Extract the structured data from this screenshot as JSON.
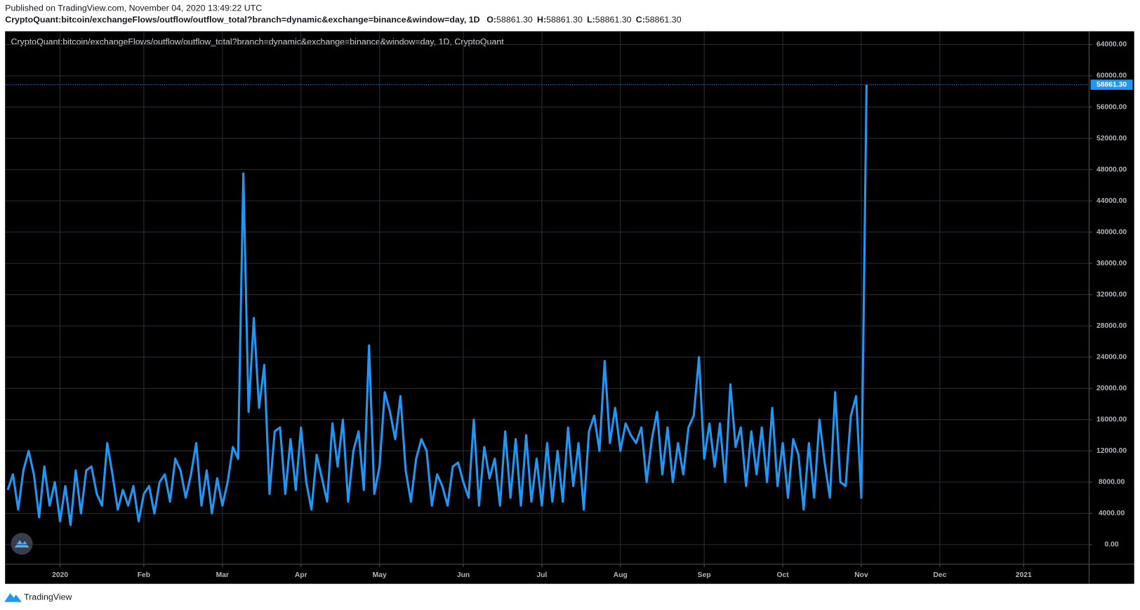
{
  "chart_data": {
    "type": "line",
    "title": "Published on TradingView.com, November 04, 2020 13:49:22 UTC",
    "subtitle": "CryptoQuant:bitcoin/exchangeFlows/outflow/outflow_total?branch=dynamic&exchange=binance&window=day, 1D",
    "ohlc": [
      {
        "name": "O:",
        "text": "58861.30"
      },
      {
        "name": "H:",
        "text": "58861.30"
      },
      {
        "name": "L:",
        "text": "58861.30"
      },
      {
        "name": "C:",
        "text": "58861.30"
      }
    ],
    "footer": "TradingView",
    "categories": [
      null,
      null,
      null,
      null,
      null,
      null,
      null,
      null,
      null,
      null,
      "2020",
      null,
      null,
      null,
      null,
      null,
      null,
      null,
      null,
      null,
      null,
      null,
      null,
      null,
      null,
      null,
      "Feb",
      null,
      null,
      null,
      null,
      null,
      null,
      null,
      null,
      null,
      null,
      null,
      null,
      null,
      null,
      "Mar",
      null,
      null,
      null,
      null,
      null,
      null,
      null,
      null,
      null,
      null,
      null,
      null,
      null,
      null,
      "Apr",
      null,
      null,
      null,
      null,
      null,
      null,
      null,
      null,
      null,
      null,
      null,
      null,
      null,
      null,
      "May",
      null,
      null,
      null,
      null,
      null,
      null,
      null,
      null,
      null,
      null,
      null,
      null,
      null,
      null,
      null,
      "Jun",
      null,
      null,
      null,
      null,
      null,
      null,
      null,
      null,
      null,
      null,
      null,
      null,
      null,
      null,
      "Jul",
      null,
      null,
      null,
      null,
      null,
      null,
      null,
      null,
      null,
      null,
      null,
      null,
      null,
      null,
      "Aug",
      null,
      null,
      null,
      null,
      null,
      null,
      null,
      null,
      null,
      null,
      null,
      null,
      null,
      null,
      null,
      "Sep",
      null,
      null,
      null,
      null,
      null,
      null,
      null,
      null,
      null,
      null,
      null,
      null,
      null,
      null,
      "Oct",
      null,
      null,
      null,
      null,
      null,
      null,
      null,
      null,
      null,
      null,
      null,
      null,
      null,
      null,
      "Nov",
      null,
      null,
      null,
      null,
      null,
      null,
      null,
      null,
      null,
      null,
      null,
      null,
      null,
      null,
      "Dec",
      null,
      null,
      null,
      null,
      null,
      null,
      null,
      null,
      null,
      null,
      null,
      null,
      null,
      null,
      null,
      "2021",
      null,
      null,
      null,
      null,
      null,
      null,
      null,
      null,
      null,
      null,
      null,
      null
    ],
    "series": [
      {
        "name": "CryptoQuant:bitcoin/exchangeFlows/outflow/outflow_total?branch=dynamic&exchange=binance&window=day, 1D, CryptoQuant",
        "color": "#2196f3",
        "values": [
          7000,
          9000,
          4500,
          9500,
          12000,
          9000,
          3500,
          10000,
          5000,
          8000,
          3000,
          7500,
          2500,
          9500,
          4000,
          9500,
          10000,
          6500,
          5000,
          13000,
          9000,
          4500,
          7000,
          5000,
          7500,
          3000,
          6500,
          7500,
          4000,
          8000,
          9000,
          5500,
          11000,
          9500,
          6000,
          9000,
          13000,
          5000,
          9500,
          4000,
          8500,
          5000,
          8000,
          12500,
          11000,
          47500,
          17000,
          29000,
          17500,
          23000,
          6500,
          14500,
          15000,
          6500,
          13500,
          7000,
          15000,
          8000,
          4500,
          11500,
          8500,
          5500,
          15500,
          10000,
          16000,
          5500,
          12000,
          14500,
          7000,
          25500,
          6500,
          10000,
          19500,
          17000,
          13500,
          19000,
          9500,
          5500,
          11000,
          13500,
          12000,
          5000,
          9000,
          7500,
          5000,
          10000,
          10500,
          8000,
          6000,
          16000,
          5000,
          12500,
          8500,
          11000,
          5000,
          14500,
          6000,
          13500,
          5000,
          14000,
          5500,
          11000,
          5000,
          13000,
          5500,
          12000,
          5500,
          15000,
          7500,
          13000,
          4500,
          14500,
          16500,
          12000,
          23500,
          13000,
          17500,
          12000,
          15500,
          14000,
          13000,
          15000,
          8000,
          13500,
          17000,
          9000,
          15000,
          8000,
          13000,
          9000,
          15000,
          16500,
          24000,
          11000,
          15500,
          10000,
          15500,
          8000,
          20500,
          12500,
          15000,
          7500,
          14500,
          9000,
          15000,
          8000,
          17500,
          7500,
          13000,
          6000,
          13500,
          11500,
          4500,
          13000,
          6000,
          16000,
          10500,
          6000,
          19500,
          8000,
          7500,
          16500,
          19000,
          6000,
          58861.3,
          null,
          null,
          null,
          null,
          null,
          null,
          null,
          null,
          null,
          null,
          null,
          null,
          null,
          null,
          null,
          null,
          null,
          null,
          null,
          null,
          null,
          null,
          null,
          null,
          null,
          null,
          null,
          null,
          null,
          null,
          null,
          null,
          null,
          null,
          null,
          null,
          null,
          null,
          null,
          null,
          null,
          null
        ]
      }
    ],
    "last_value": {
      "value": 58861.3,
      "label": "58861.30"
    },
    "ylim": [
      -2500,
      65700
    ],
    "yticks": [
      {
        "value": 0,
        "label": "0.00"
      },
      {
        "value": 4000,
        "label": "4000.00"
      },
      {
        "value": 8000,
        "label": "8000.00"
      },
      {
        "value": 12000,
        "label": "12000.00"
      },
      {
        "value": 16000,
        "label": "16000.00"
      },
      {
        "value": 20000,
        "label": "20000.00"
      },
      {
        "value": 24000,
        "label": "24000.00"
      },
      {
        "value": 28000,
        "label": "28000.00"
      },
      {
        "value": 32000,
        "label": "32000.00"
      },
      {
        "value": 36000,
        "label": "36000.00"
      },
      {
        "value": 40000,
        "label": "40000.00"
      },
      {
        "value": 44000,
        "label": "44000.00"
      },
      {
        "value": 48000,
        "label": "48000.00"
      },
      {
        "value": 52000,
        "label": "52000.00"
      },
      {
        "value": 56000,
        "label": "56000.00"
      },
      {
        "value": 60000,
        "label": "60000.00"
      },
      {
        "value": 64000,
        "label": "64000.00"
      }
    ],
    "grid": true
  }
}
